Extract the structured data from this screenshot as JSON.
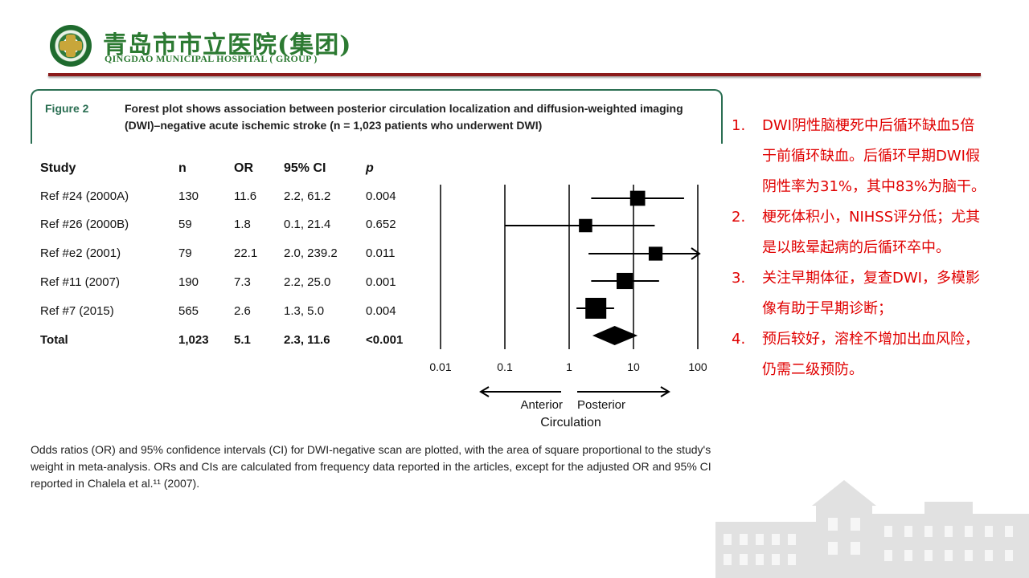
{
  "header": {
    "hospital_name_cn": "青岛市市立医院(集团)",
    "hospital_name_en": "QINGDAO MUNICIPAL HOSPITAL ( GROUP )",
    "rule_color": "#8b1a1a",
    "brand_color": "#2c7a32"
  },
  "figure": {
    "label": "Figure 2",
    "caption": "Forest plot shows association between posterior circulation localization and diffusion-weighted imaging (DWI)–negative acute ischemic stroke (n = 1,023 patients who underwent DWI)",
    "columns": [
      "Study",
      "n",
      "OR",
      "95% CI",
      "p"
    ],
    "rows": [
      {
        "study": "Ref #24 (2000A)",
        "n": "130",
        "or": "11.6",
        "ci": "2.2, 61.2",
        "p": "0.004"
      },
      {
        "study": "Ref #26 (2000B)",
        "n": "59",
        "or": "1.8",
        "ci": "0.1, 21.4",
        "p": "0.652"
      },
      {
        "study": "Ref #e2 (2001)",
        "n": "79",
        "or": "22.1",
        "ci": "2.0, 239.2",
        "p": "0.011"
      },
      {
        "study": "Ref #11 (2007)",
        "n": "190",
        "or": "7.3",
        "ci": "2.2, 25.0",
        "p": "0.001"
      },
      {
        "study": "Ref #7 (2015)",
        "n": "565",
        "or": "2.6",
        "ci": "1.3, 5.0",
        "p": "0.004"
      },
      {
        "study": "Total",
        "n": "1,023",
        "or": "5.1",
        "ci": "2.3, 11.6",
        "p": "<0.001"
      }
    ],
    "axis_ticks": [
      "0.01",
      "0.1",
      "1",
      "10",
      "100"
    ],
    "direction_left": "Anterior",
    "direction_right": "Posterior",
    "axis_label": "Circulation",
    "footnote": "Odds ratios (OR) and 95% confidence intervals (CI) for DWI-negative scan are plotted, with the area of square proportional to the study's weight in meta-analysis. ORs and CIs are calculated from frequency data reported in the articles, except for the adjusted OR and 95% CI reported in Chalela et al.¹¹ (2007)."
  },
  "chart_data": {
    "type": "forest",
    "x_scale": "log",
    "xlim": [
      0.01,
      100
    ],
    "x_ticks": [
      0.01,
      0.1,
      1,
      10,
      100
    ],
    "reference_line": 1,
    "xlabel": "Circulation",
    "studies": [
      {
        "label": "Ref #24 (2000A)",
        "n": 130,
        "or": 11.6,
        "ci_low": 2.2,
        "ci_high": 61.2
      },
      {
        "label": "Ref #26 (2000B)",
        "n": 59,
        "or": 1.8,
        "ci_low": 0.1,
        "ci_high": 21.4
      },
      {
        "label": "Ref #e2 (2001)",
        "n": 79,
        "or": 22.1,
        "ci_low": 2.0,
        "ci_high": 239.2
      },
      {
        "label": "Ref #11 (2007)",
        "n": 190,
        "or": 7.3,
        "ci_low": 2.2,
        "ci_high": 25.0
      },
      {
        "label": "Ref #7 (2015)",
        "n": 565,
        "or": 2.6,
        "ci_low": 1.3,
        "ci_high": 5.0
      }
    ],
    "total": {
      "label": "Total",
      "n": 1023,
      "or": 5.1,
      "ci_low": 2.3,
      "ci_high": 11.6
    }
  },
  "notes": [
    {
      "num": "1.",
      "text": "DWI阴性脑梗死中后循环缺血5倍于前循环缺血。后循环早期DWI假阴性率为31%，其中83%为脑干。"
    },
    {
      "num": "2.",
      "text": "梗死体积小，NIHSS评分低；尤其是以眩晕起病的后循环卒中。"
    },
    {
      "num": "3.",
      "text": "关注早期体征，复查DWI，多模影像有助于早期诊断；"
    },
    {
      "num": "4.",
      "text": "预后较好，溶栓不增加出血风险，仍需二级预防。"
    }
  ],
  "accent_color": "#e00000"
}
